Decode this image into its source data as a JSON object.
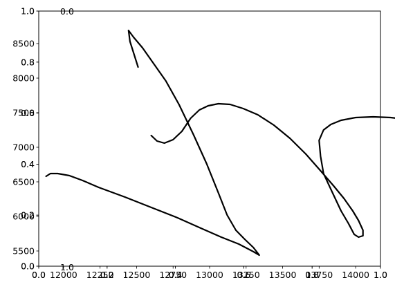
{
  "chart_data": {
    "type": "line",
    "title": "",
    "xlabel": "",
    "ylabel": "",
    "grid": false,
    "axes": [
      {
        "role": "overlay_axes_1",
        "xlim": [
          0.0,
          1.0
        ],
        "ylim": [
          0.0,
          1.0
        ],
        "x_ticks": [
          {
            "value": 0.0,
            "label": "0.0"
          },
          {
            "value": 0.2,
            "label": "0.2"
          },
          {
            "value": 0.4,
            "label": "0.4"
          },
          {
            "value": 0.6,
            "label": "0.6"
          },
          {
            "value": 0.8,
            "label": "0.8"
          },
          {
            "value": 1.0,
            "label": "1.0"
          }
        ],
        "y_ticks": [
          {
            "value": 0.0,
            "label": "0.0"
          },
          {
            "value": 0.2,
            "label": "0.2"
          },
          {
            "value": 0.4,
            "label": "0.4"
          },
          {
            "value": 0.6,
            "label": "0.6"
          },
          {
            "value": 0.8,
            "label": "0.8"
          },
          {
            "value": 1.0,
            "label": "1.0"
          }
        ]
      },
      {
        "role": "overlay_axes_2",
        "xlim": [
          0.0,
          1.0
        ],
        "ylim": [
          0.0,
          1.0
        ],
        "x_ticks": [
          {
            "value": 0.0,
            "label": "0.0"
          },
          {
            "value": 0.2,
            "label": "0.2"
          },
          {
            "value": 0.4,
            "label": "0.4"
          },
          {
            "value": 0.6,
            "label": "0.6"
          },
          {
            "value": 0.8,
            "label": "0.8"
          },
          {
            "value": 1.0,
            "label": "1.0"
          }
        ],
        "y_ticks": [
          {
            "value": 0.0,
            "label": "0.0"
          },
          {
            "value": 0.2,
            "label": "0.2"
          },
          {
            "value": 0.4,
            "label": "0.4"
          },
          {
            "value": 0.6,
            "label": "0.6"
          },
          {
            "value": 0.8,
            "label": "0.8"
          },
          {
            "value": 1.0,
            "label": "1.0"
          }
        ]
      },
      {
        "role": "main",
        "xlim": [
          11830,
          14170
        ],
        "ylim": [
          5280,
          8970
        ],
        "x_ticks": [
          {
            "value": 12000,
            "label": "12000"
          },
          {
            "value": 12250,
            "label": "12250"
          },
          {
            "value": 12500,
            "label": "12500"
          },
          {
            "value": 12750,
            "label": "12750"
          },
          {
            "value": 13000,
            "label": "13000"
          },
          {
            "value": 13250,
            "label": "13250"
          },
          {
            "value": 13500,
            "label": "13500"
          },
          {
            "value": 13750,
            "label": "13750"
          },
          {
            "value": 14000,
            "label": "14000"
          }
        ],
        "y_ticks": [
          {
            "value": 5500,
            "label": "5500"
          },
          {
            "value": 6000,
            "label": "6000"
          },
          {
            "value": 6500,
            "label": "6500"
          },
          {
            "value": 7000,
            "label": "7000"
          },
          {
            "value": 7500,
            "label": "7500"
          },
          {
            "value": 8000,
            "label": "8000"
          },
          {
            "value": 8500,
            "label": "8500"
          }
        ]
      }
    ],
    "stray_text": {
      "top": "0.0",
      "bottom": "1.0"
    },
    "series": [
      {
        "color": "#000000",
        "points": [
          [
            12510,
            8160
          ],
          [
            12455,
            8530
          ],
          [
            12445,
            8690
          ],
          [
            12480,
            8590
          ],
          [
            12540,
            8440
          ],
          [
            12620,
            8200
          ],
          [
            12700,
            7960
          ],
          [
            12790,
            7620
          ],
          [
            12890,
            7180
          ],
          [
            12980,
            6760
          ],
          [
            13060,
            6340
          ],
          [
            13120,
            6020
          ],
          [
            13180,
            5800
          ],
          [
            13240,
            5670
          ],
          [
            13300,
            5550
          ],
          [
            13340,
            5440
          ],
          [
            13300,
            5490
          ],
          [
            13200,
            5600
          ],
          [
            13080,
            5700
          ],
          [
            12940,
            5830
          ],
          [
            12780,
            5980
          ],
          [
            12600,
            6130
          ],
          [
            12420,
            6280
          ],
          [
            12240,
            6420
          ],
          [
            12130,
            6520
          ],
          [
            12040,
            6590
          ],
          [
            11960,
            6620
          ],
          [
            11910,
            6620
          ],
          [
            11880,
            6580
          ]
        ]
      },
      {
        "color": "#000000",
        "points": [
          [
            12600,
            7170
          ],
          [
            12640,
            7090
          ],
          [
            12690,
            7060
          ],
          [
            12750,
            7110
          ],
          [
            12810,
            7230
          ],
          [
            12870,
            7420
          ],
          [
            12930,
            7540
          ],
          [
            12990,
            7600
          ],
          [
            13060,
            7630
          ],
          [
            13140,
            7620
          ],
          [
            13230,
            7560
          ],
          [
            13330,
            7470
          ],
          [
            13440,
            7320
          ],
          [
            13550,
            7130
          ],
          [
            13660,
            6900
          ],
          [
            13760,
            6660
          ],
          [
            13850,
            6440
          ],
          [
            13920,
            6260
          ],
          [
            13980,
            6080
          ],
          [
            14020,
            5940
          ],
          [
            14050,
            5800
          ],
          [
            14050,
            5720
          ],
          [
            14020,
            5700
          ],
          [
            13990,
            5740
          ],
          [
            13950,
            5900
          ],
          [
            13900,
            6080
          ],
          [
            13840,
            6350
          ],
          [
            13780,
            6620
          ],
          [
            13760,
            6870
          ],
          [
            13750,
            7100
          ],
          [
            13780,
            7250
          ],
          [
            13830,
            7330
          ],
          [
            13900,
            7390
          ],
          [
            14000,
            7430
          ],
          [
            14120,
            7440
          ],
          [
            14240,
            7430
          ],
          [
            14360,
            7400
          ],
          [
            14430,
            7360
          ],
          [
            14470,
            7330
          ]
        ]
      }
    ]
  }
}
